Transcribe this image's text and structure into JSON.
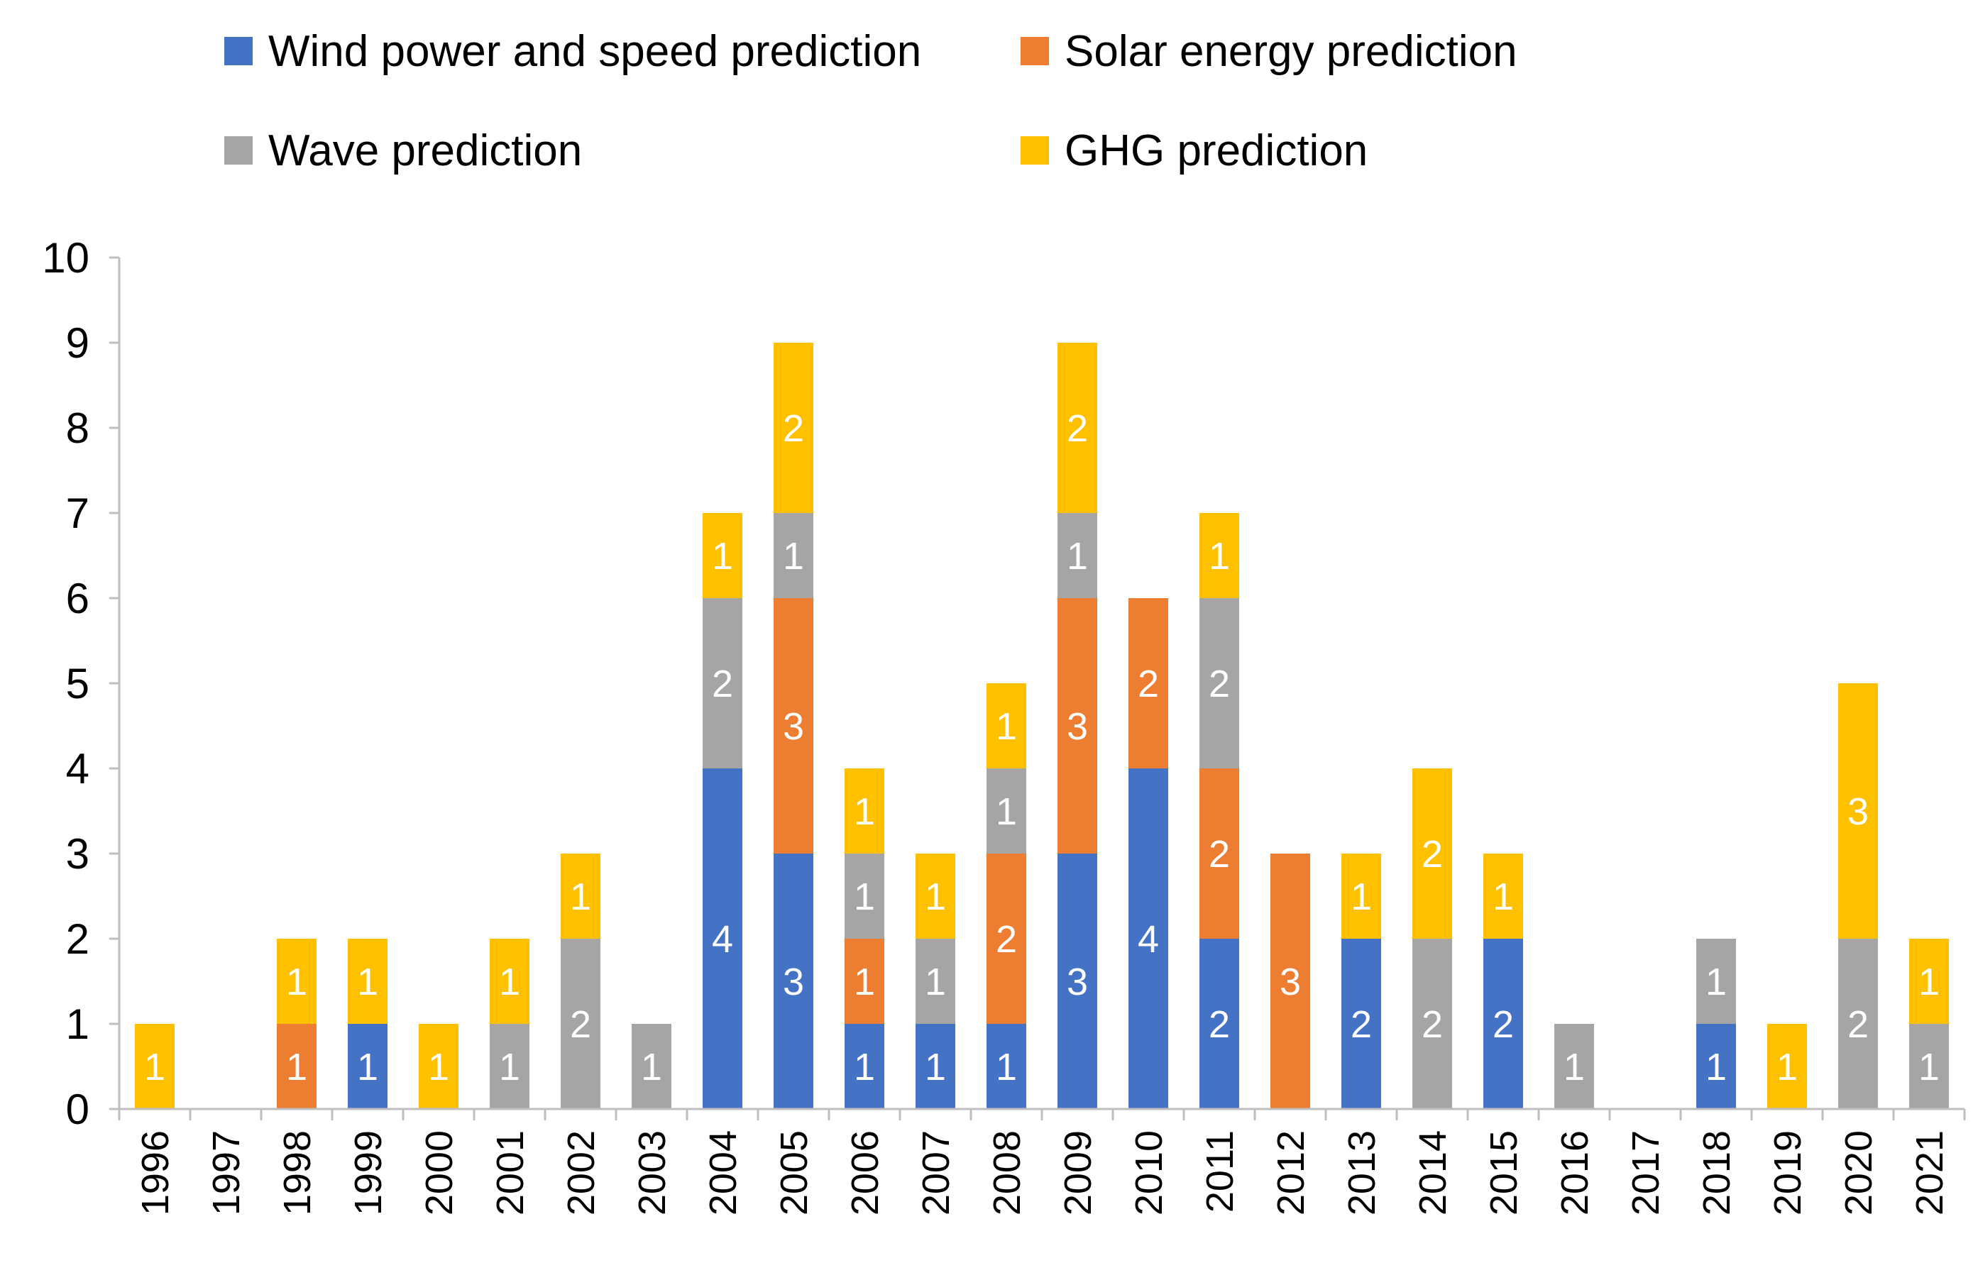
{
  "chart_data": {
    "type": "bar",
    "stacked": true,
    "categories": [
      "1996",
      "1997",
      "1998",
      "1999",
      "2000",
      "2001",
      "2002",
      "2003",
      "2004",
      "2005",
      "2006",
      "2007",
      "2008",
      "2009",
      "2010",
      "2011",
      "2012",
      "2013",
      "2014",
      "2015",
      "2016",
      "2017",
      "2018",
      "2019",
      "2020",
      "2021"
    ],
    "series": [
      {
        "name": "Wind power and speed prediction",
        "color": "#4472C4",
        "values": [
          0,
          0,
          0,
          1,
          0,
          0,
          0,
          0,
          4,
          3,
          1,
          1,
          1,
          3,
          4,
          2,
          0,
          2,
          0,
          2,
          0,
          0,
          1,
          0,
          0,
          0
        ]
      },
      {
        "name": "Solar energy prediction",
        "color": "#ED7D31",
        "values": [
          0,
          0,
          1,
          0,
          0,
          0,
          0,
          0,
          0,
          3,
          1,
          0,
          2,
          3,
          2,
          2,
          3,
          0,
          0,
          0,
          0,
          0,
          0,
          0,
          0,
          0
        ]
      },
      {
        "name": "Wave prediction",
        "color": "#A5A5A5",
        "values": [
          0,
          0,
          0,
          0,
          0,
          1,
          2,
          1,
          2,
          1,
          1,
          1,
          1,
          1,
          0,
          2,
          0,
          0,
          2,
          0,
          1,
          0,
          1,
          0,
          2,
          1
        ]
      },
      {
        "name": "GHG prediction",
        "color": "#FFC000",
        "values": [
          1,
          0,
          1,
          1,
          1,
          1,
          1,
          0,
          1,
          2,
          1,
          1,
          1,
          2,
          0,
          1,
          0,
          1,
          2,
          1,
          0,
          0,
          0,
          1,
          3,
          1
        ]
      }
    ],
    "title": "",
    "xlabel": "",
    "ylabel": "",
    "ylim": [
      0,
      10
    ],
    "yticks": [
      "0",
      "1",
      "2",
      "3",
      "4",
      "5",
      "6",
      "7",
      "8",
      "9",
      "10"
    ],
    "data_labels": true,
    "grid": false,
    "legend_position": "top"
  }
}
